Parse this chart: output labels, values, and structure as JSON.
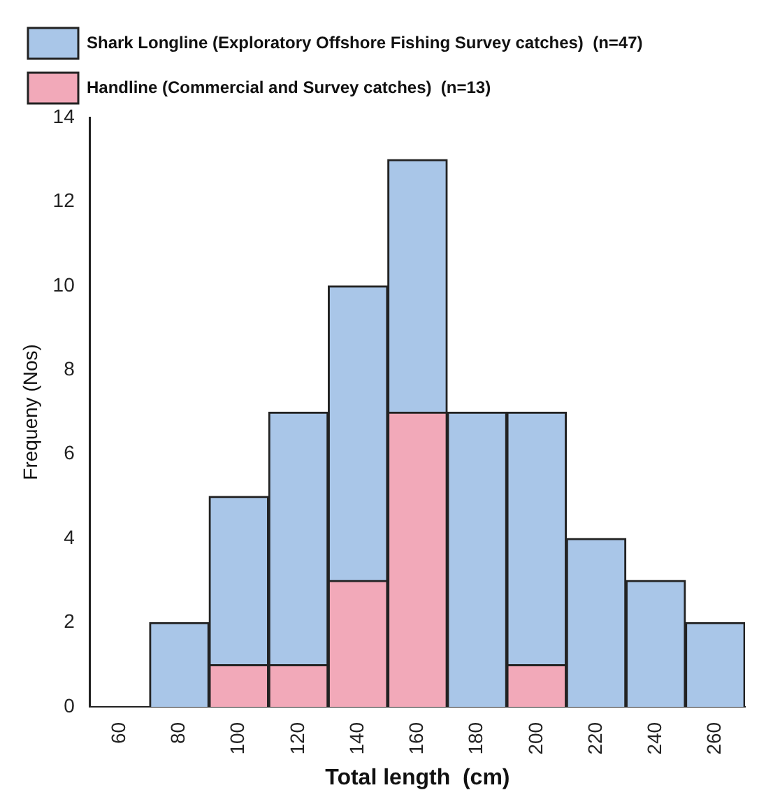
{
  "chart_data": {
    "type": "bar",
    "stacked": true,
    "xlabel": "Total length  (cm)",
    "ylabel": "Frequeny (Nos)",
    "categories": [
      "60",
      "80",
      "100",
      "120",
      "140",
      "160",
      "180",
      "200",
      "220",
      "240",
      "260"
    ],
    "series": [
      {
        "name": "Handline (Commercial and Survey catches)  (n=13)",
        "color": "#f2a9b9",
        "values": [
          0,
          0,
          1,
          1,
          3,
          7,
          0,
          1,
          0,
          0,
          0
        ]
      },
      {
        "name": "Shark Longline (Exploratory Offshore Fishing Survey catches)  (n=47)",
        "color": "#a9c6e8",
        "values": [
          0,
          2,
          4,
          6,
          7,
          6,
          7,
          6,
          4,
          3,
          2
        ]
      }
    ],
    "ylim": [
      0,
      14
    ],
    "yticks": [
      0,
      2,
      4,
      6,
      8,
      10,
      12,
      14
    ],
    "grid": false,
    "legend": "top"
  }
}
